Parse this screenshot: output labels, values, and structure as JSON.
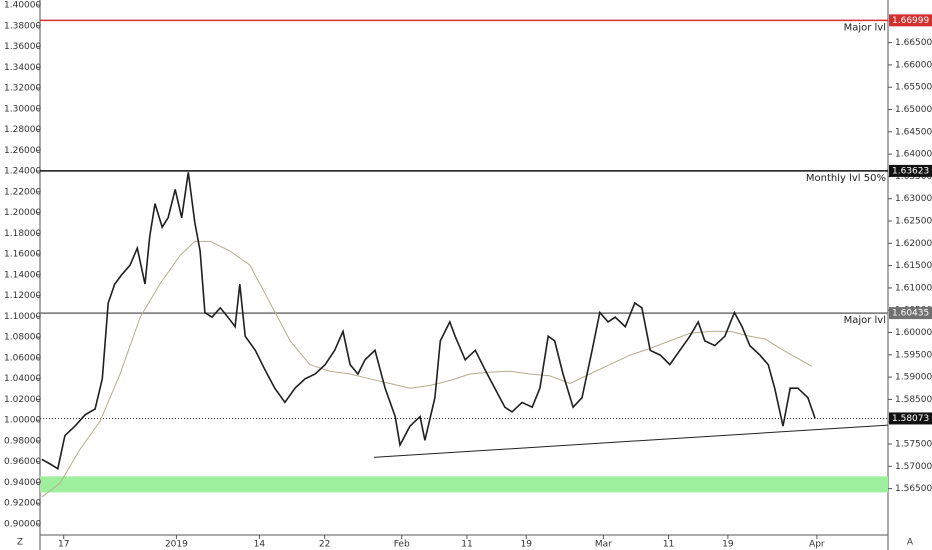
{
  "chart_data": {
    "type": "line",
    "x": [
      0.3,
      1.7,
      3.0,
      4.2,
      5.9,
      7.6,
      9.3,
      10.5,
      11.5,
      12.6,
      13.8,
      15.2,
      16.4,
      17.7,
      18.5,
      19.4,
      20.6,
      21.6,
      22.8,
      23.9,
      25.0,
      26.1,
      27.0,
      27.8,
      29.0,
      30.4,
      31.7,
      32.9,
      33.7,
      34.6,
      36.3,
      37.9,
      39.6,
      41.3,
      43.0,
      44.7,
      46.4,
      48.1,
      49.7,
      51.1,
      52.3,
      53.6,
      54.8,
      56.5,
      58.2,
      59.9,
      60.7,
      62.4,
      64.1,
      64.9,
      66.6,
      67.5,
      69.1,
      70.0,
      71.7,
      73.4,
      75.0,
      76.7,
      78.4,
      79.6,
      81.3,
      83.0,
      84.3,
      85.7,
      86.8,
      88.2,
      89.9,
      91.4,
      93.1,
      94.4,
      95.8,
      97.0,
      98.7,
      100.3,
      101.5,
      102.9,
      104.6,
      106.2,
      107.9,
      109.6,
      111.0,
      112.1,
      113.8,
      115.5,
      117.1,
      118.4,
      119.7,
      121.4,
      122.8,
      123.9,
      125.3,
      126.5,
      127.8,
      129.5,
      130.7
    ],
    "series": [
      {
        "color": "#1f1f1f",
        "values": [
          1.57158,
          1.57052,
          1.56946,
          1.57689,
          1.57901,
          1.58156,
          1.58284,
          1.58963,
          1.60661,
          1.61086,
          1.61298,
          1.61511,
          1.61893,
          1.61086,
          1.62148,
          1.62891,
          1.6236,
          1.62572,
          1.63209,
          1.62572,
          1.63591,
          1.62466,
          1.61829,
          1.60449,
          1.60343,
          1.60555,
          1.60343,
          1.60131,
          1.61086,
          1.59918,
          1.596,
          1.59175,
          1.58751,
          1.58432,
          1.58751,
          1.58963,
          1.59069,
          1.59281,
          1.596,
          1.60025,
          1.59281,
          1.59069,
          1.59388,
          1.596,
          1.58751,
          1.58114,
          1.57477,
          1.57901,
          1.58114,
          1.57583,
          1.58538,
          1.59812,
          1.60237,
          1.59918,
          1.59388,
          1.596,
          1.59175,
          1.58751,
          1.58326,
          1.5822,
          1.58432,
          1.58326,
          1.58751,
          1.59918,
          1.59812,
          1.59069,
          1.58326,
          1.58538,
          1.596,
          1.60449,
          1.60237,
          1.60343,
          1.60131,
          1.60661,
          1.60555,
          1.596,
          1.59494,
          1.59281,
          1.596,
          1.59918,
          1.60237,
          1.59812,
          1.59706,
          1.59918,
          1.60449,
          1.60131,
          1.59706,
          1.59494,
          1.59281,
          1.58751,
          1.57901,
          1.58751,
          1.58751,
          1.58538,
          1.58073
        ]
      }
    ],
    "moving_average": {
      "color": "#b5ad8c",
      "x": [
        0.3,
        3.4,
        6.7,
        10.1,
        13.5,
        16.9,
        20.2,
        23.6,
        26.1,
        28.7,
        32.0,
        35.4,
        38.8,
        42.2,
        45.5,
        48.9,
        52.3,
        55.6,
        59.0,
        62.4,
        65.8,
        69.1,
        72.5,
        75.9,
        79.3,
        82.6,
        86.0,
        89.4,
        92.7,
        96.1,
        99.5,
        102.9,
        106.2,
        109.6,
        113.0,
        116.4,
        119.7,
        122.3,
        124.8,
        128.2,
        130.2
      ],
      "values": [
        1.5631,
        1.56628,
        1.57371,
        1.58008,
        1.59069,
        1.60343,
        1.61086,
        1.61723,
        1.62042,
        1.62042,
        1.61829,
        1.61511,
        1.60661,
        1.59812,
        1.59281,
        1.59133,
        1.59069,
        1.58963,
        1.58857,
        1.58751,
        1.58815,
        1.58921,
        1.59069,
        1.59112,
        1.59133,
        1.59069,
        1.59027,
        1.58857,
        1.59069,
        1.59281,
        1.59494,
        1.59643,
        1.59812,
        1.59982,
        1.60025,
        1.60025,
        1.59918,
        1.59855,
        1.59643,
        1.59388,
        1.59239
      ]
    },
    "levels": [
      {
        "label": "Major lvl",
        "value": 1.66999,
        "color": "#d32f2f"
      },
      {
        "label": "Monthly lvl 50%",
        "value": 1.63623,
        "color": "#111111"
      },
      {
        "label": "Major lvl",
        "value": 1.60435,
        "color": "#707070"
      }
    ],
    "last_price": 1.58073,
    "trendline": {
      "x": [
        56.3,
        143
      ],
      "values": [
        1.57201,
        1.57923
      ]
    },
    "zone": {
      "color": "#9ef09e",
      "values": [
        1.56415,
        1.56776
      ]
    },
    "xlim": [
      0,
      143
    ],
    "xticks": [
      {
        "value": 4,
        "label": "17"
      },
      {
        "value": 23,
        "label": "2019"
      },
      {
        "value": 37,
        "label": "14"
      },
      {
        "value": 48,
        "label": "22"
      },
      {
        "value": 61,
        "label": "Feb"
      },
      {
        "value": 72,
        "label": "11"
      },
      {
        "value": 82,
        "label": "19"
      },
      {
        "value": 95,
        "label": "Mar"
      },
      {
        "value": 106,
        "label": "11"
      },
      {
        "value": 116,
        "label": "19"
      },
      {
        "value": 131,
        "label": "Apr"
      }
    ],
    "ylim": [
      1.5546,
      1.67455
    ],
    "yticks": [
      {
        "value": 1.665,
        "label": "1.66500"
      },
      {
        "value": 1.66,
        "label": "1.66000"
      },
      {
        "value": 1.655,
        "label": "1.65500"
      },
      {
        "value": 1.65,
        "label": "1.65000"
      },
      {
        "value": 1.645,
        "label": "1.64500"
      },
      {
        "value": 1.64,
        "label": "1.64000"
      },
      {
        "value": 1.635,
        "label": "1.63500"
      },
      {
        "value": 1.63,
        "label": "1.63000"
      },
      {
        "value": 1.625,
        "label": "1.62500"
      },
      {
        "value": 1.62,
        "label": "1.62000"
      },
      {
        "value": 1.615,
        "label": "1.61500"
      },
      {
        "value": 1.61,
        "label": "1.61000"
      },
      {
        "value": 1.605,
        "label": "1.60500"
      },
      {
        "value": 1.6,
        "label": "1.60000"
      },
      {
        "value": 1.595,
        "label": "1.59500"
      },
      {
        "value": 1.59,
        "label": "1.59000"
      },
      {
        "value": 1.585,
        "label": "1.58500"
      },
      {
        "value": 1.58,
        "label": "1.58000"
      },
      {
        "value": 1.575,
        "label": "1.57500"
      },
      {
        "value": 1.57,
        "label": "1.57000"
      },
      {
        "value": 1.565,
        "label": "1.56500"
      }
    ],
    "y2lim": [
      0.8894,
      1.40482
    ],
    "y2ticks": [
      {
        "value": 1.4,
        "label": "1.40000"
      },
      {
        "value": 1.38,
        "label": "1.38000"
      },
      {
        "value": 1.36,
        "label": "1.36000"
      },
      {
        "value": 1.34,
        "label": "1.34000"
      },
      {
        "value": 1.32,
        "label": "1.32000"
      },
      {
        "value": 1.3,
        "label": "1.30000"
      },
      {
        "value": 1.28,
        "label": "1.28000"
      },
      {
        "value": 1.26,
        "label": "1.26000"
      },
      {
        "value": 1.24,
        "label": "1.24000"
      },
      {
        "value": 1.22,
        "label": "1.22000"
      },
      {
        "value": 1.2,
        "label": "1.20000"
      },
      {
        "value": 1.18,
        "label": "1.18000"
      },
      {
        "value": 1.16,
        "label": "1.16000"
      },
      {
        "value": 1.14,
        "label": "1.14000"
      },
      {
        "value": 1.12,
        "label": "1.12000"
      },
      {
        "value": 1.1,
        "label": "1.10000"
      },
      {
        "value": 1.08,
        "label": "1.08000"
      },
      {
        "value": 1.06,
        "label": "1.06000"
      },
      {
        "value": 1.04,
        "label": "1.04000"
      },
      {
        "value": 1.02,
        "label": "1.02000"
      },
      {
        "value": 1.0,
        "label": "1.00000"
      },
      {
        "value": 0.98,
        "label": "0.98000"
      },
      {
        "value": 0.96,
        "label": "0.96000"
      },
      {
        "value": 0.94,
        "label": "0.94000"
      },
      {
        "value": 0.92,
        "label": "0.92000"
      },
      {
        "value": 0.9,
        "label": "0.90000"
      }
    ],
    "corner_labels": [
      "Z",
      "A"
    ]
  }
}
